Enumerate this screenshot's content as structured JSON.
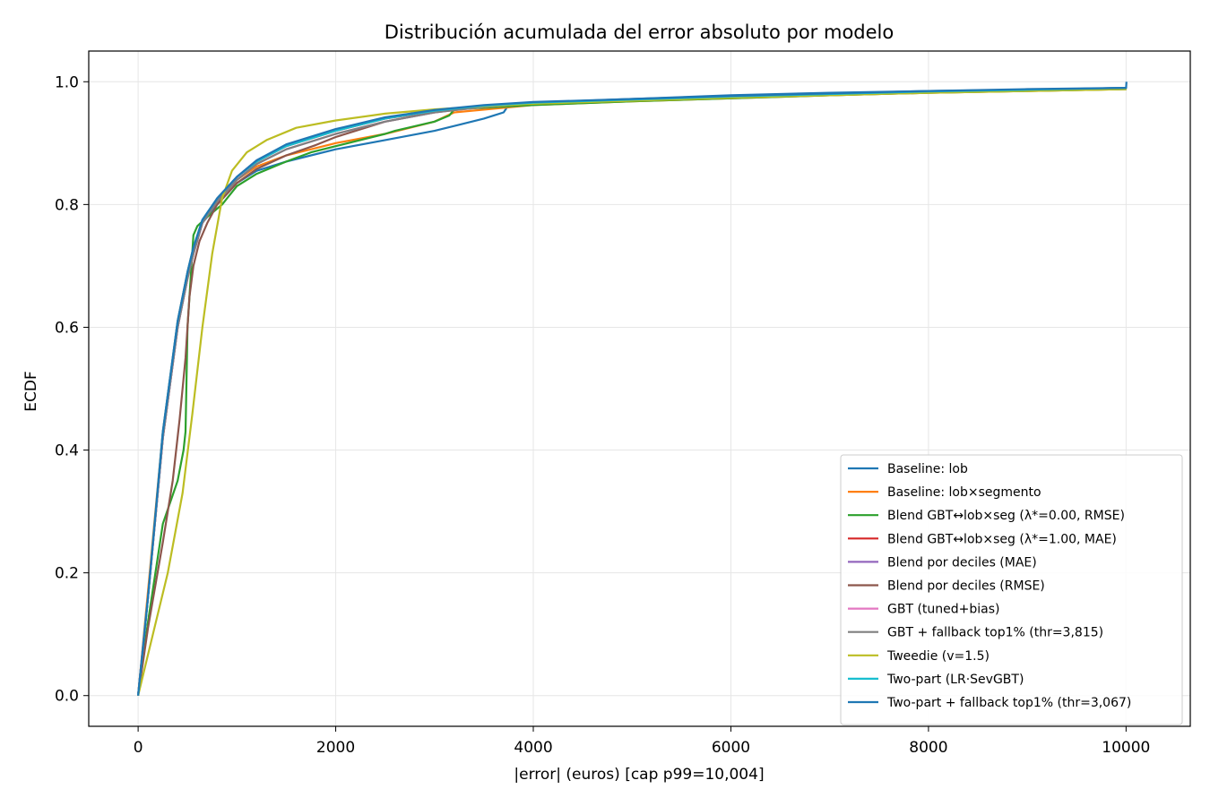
{
  "chart_data": {
    "type": "line",
    "title": "Distribución acumulada del error absoluto por modelo",
    "xlabel": "|error| (euros)  [cap p99=10,004]",
    "ylabel": "ECDF",
    "xlim": [
      -500,
      10650
    ],
    "ylim": [
      -0.05,
      1.05
    ],
    "xticks": [
      0,
      2000,
      4000,
      6000,
      8000,
      10000
    ],
    "yticks": [
      0.0,
      0.2,
      0.4,
      0.6,
      0.8,
      1.0
    ],
    "xtick_labels": [
      "0",
      "2000",
      "4000",
      "6000",
      "8000",
      "10000"
    ],
    "ytick_labels": [
      "0.0",
      "0.2",
      "0.4",
      "0.6",
      "0.8",
      "1.0"
    ],
    "grid": true,
    "legend_position": "lower-right",
    "series": [
      {
        "name": "Baseline: lob",
        "color": "#1f77b4",
        "x": [
          0,
          100,
          250,
          400,
          500,
          560,
          650,
          800,
          1000,
          1200,
          1500,
          1750,
          2000,
          2500,
          3000,
          3500,
          3700,
          3750,
          4000,
          5000,
          6000,
          7000,
          8000,
          9000,
          10000,
          10004
        ],
        "y": [
          0,
          0.16,
          0.42,
          0.6,
          0.68,
          0.72,
          0.77,
          0.8,
          0.835,
          0.855,
          0.87,
          0.88,
          0.89,
          0.905,
          0.92,
          0.94,
          0.95,
          0.962,
          0.966,
          0.972,
          0.978,
          0.982,
          0.985,
          0.987,
          0.99,
          1.0
        ]
      },
      {
        "name": "Baseline: lob×segmento",
        "color": "#ff7f0e",
        "x": [
          0,
          100,
          250,
          400,
          500,
          560,
          650,
          800,
          1000,
          1200,
          1500,
          1750,
          2000,
          2500,
          3000,
          3200,
          4000,
          5000,
          6000,
          7000,
          8000,
          9000,
          10004
        ],
        "y": [
          0,
          0.17,
          0.43,
          0.61,
          0.69,
          0.73,
          0.77,
          0.805,
          0.84,
          0.862,
          0.88,
          0.89,
          0.9,
          0.915,
          0.935,
          0.95,
          0.962,
          0.968,
          0.973,
          0.978,
          0.982,
          0.985,
          0.988
        ]
      },
      {
        "name": "Blend GBT↔lob×seg (λ*=0.00, RMSE)",
        "color": "#2ca02c",
        "x": [
          0,
          100,
          250,
          400,
          460,
          480,
          500,
          560,
          600,
          700,
          850,
          1000,
          1200,
          1500,
          1750,
          2000,
          2500,
          2600,
          3000,
          3150,
          3200,
          4000,
          5000,
          6000,
          7000,
          8000,
          9000,
          10004
        ],
        "y": [
          0,
          0.12,
          0.28,
          0.35,
          0.4,
          0.43,
          0.6,
          0.75,
          0.765,
          0.78,
          0.8,
          0.83,
          0.85,
          0.87,
          0.885,
          0.895,
          0.915,
          0.92,
          0.935,
          0.945,
          0.955,
          0.962,
          0.968,
          0.973,
          0.978,
          0.982,
          0.985,
          0.988
        ]
      },
      {
        "name": "Blend GBT↔lob×seg (λ*=1.00, MAE)",
        "color": "#d62728",
        "x": [
          0,
          100,
          250,
          400,
          500,
          560,
          650,
          800,
          1000,
          1200,
          1500,
          2000,
          2500,
          3000,
          3500,
          4000,
          5000,
          6000,
          7000,
          8000,
          9000,
          10004
        ],
        "y": [
          0,
          0.16,
          0.42,
          0.6,
          0.68,
          0.72,
          0.77,
          0.81,
          0.845,
          0.87,
          0.895,
          0.92,
          0.94,
          0.952,
          0.96,
          0.965,
          0.97,
          0.975,
          0.979,
          0.983,
          0.986,
          0.989
        ]
      },
      {
        "name": "Blend por deciles (MAE)",
        "color": "#9467bd",
        "x": [
          0,
          100,
          250,
          400,
          500,
          560,
          650,
          800,
          1000,
          1200,
          1500,
          2000,
          2500,
          3000,
          3500,
          4000,
          5000,
          6000,
          7000,
          8000,
          9000,
          10004
        ],
        "y": [
          0,
          0.16,
          0.42,
          0.6,
          0.68,
          0.72,
          0.77,
          0.81,
          0.845,
          0.872,
          0.897,
          0.922,
          0.941,
          0.953,
          0.961,
          0.966,
          0.971,
          0.976,
          0.98,
          0.984,
          0.987,
          0.99
        ]
      },
      {
        "name": "Blend por deciles (RMSE)",
        "color": "#8c564b",
        "x": [
          0,
          100,
          250,
          350,
          420,
          480,
          520,
          560,
          620,
          700,
          800,
          1000,
          1200,
          1500,
          1800,
          2000,
          2500,
          3000,
          3500,
          4000,
          5000,
          6000,
          7000,
          8000,
          9000,
          10004
        ],
        "y": [
          0,
          0.11,
          0.25,
          0.35,
          0.45,
          0.55,
          0.65,
          0.7,
          0.74,
          0.77,
          0.8,
          0.835,
          0.858,
          0.88,
          0.897,
          0.91,
          0.935,
          0.95,
          0.96,
          0.965,
          0.97,
          0.975,
          0.979,
          0.983,
          0.986,
          0.989
        ]
      },
      {
        "name": "GBT (tuned+bias)",
        "color": "#e377c2",
        "x": [
          0,
          100,
          250,
          400,
          500,
          560,
          650,
          800,
          1000,
          1200,
          1500,
          2000,
          2500,
          3000,
          3500,
          4000,
          5000,
          6000,
          7000,
          8000,
          9000,
          10004
        ],
        "y": [
          0,
          0.16,
          0.42,
          0.6,
          0.68,
          0.72,
          0.77,
          0.805,
          0.84,
          0.866,
          0.89,
          0.915,
          0.935,
          0.95,
          0.959,
          0.965,
          0.97,
          0.975,
          0.979,
          0.983,
          0.986,
          0.989
        ]
      },
      {
        "name": "GBT + fallback top1% (thr=3,815)",
        "color": "#7f7f7f",
        "x": [
          0,
          100,
          250,
          400,
          500,
          560,
          650,
          800,
          1000,
          1200,
          1500,
          2000,
          2500,
          3000,
          3500,
          4000,
          5000,
          6000,
          7000,
          8000,
          9000,
          10004
        ],
        "y": [
          0,
          0.16,
          0.42,
          0.6,
          0.68,
          0.72,
          0.77,
          0.805,
          0.84,
          0.866,
          0.89,
          0.915,
          0.935,
          0.95,
          0.959,
          0.965,
          0.97,
          0.975,
          0.979,
          0.983,
          0.986,
          0.989
        ]
      },
      {
        "name": "Tweedie (v=1.5)",
        "color": "#bcbd22",
        "x": [
          0,
          150,
          300,
          450,
          550,
          650,
          750,
          850,
          950,
          1100,
          1300,
          1600,
          2000,
          2500,
          3000,
          3500,
          4000,
          5000,
          6000,
          7000,
          8000,
          9000,
          10004
        ],
        "y": [
          0,
          0.1,
          0.2,
          0.33,
          0.46,
          0.6,
          0.72,
          0.81,
          0.855,
          0.885,
          0.905,
          0.925,
          0.937,
          0.948,
          0.955,
          0.96,
          0.964,
          0.969,
          0.974,
          0.978,
          0.982,
          0.985,
          0.988
        ]
      },
      {
        "name": "Two-part (LR·SevGBT)",
        "color": "#17becf",
        "x": [
          0,
          100,
          250,
          400,
          500,
          560,
          650,
          800,
          1000,
          1200,
          1500,
          2000,
          2500,
          3000,
          3500,
          4000,
          5000,
          6000,
          7000,
          8000,
          9000,
          10004
        ],
        "y": [
          0,
          0.16,
          0.43,
          0.61,
          0.69,
          0.73,
          0.775,
          0.81,
          0.845,
          0.87,
          0.895,
          0.92,
          0.94,
          0.953,
          0.961,
          0.966,
          0.971,
          0.976,
          0.98,
          0.984,
          0.987,
          0.99
        ]
      },
      {
        "name": "Two-part + fallback top1% (thr=3,067)",
        "color": "#1f77b4",
        "x": [
          0,
          100,
          250,
          400,
          500,
          560,
          650,
          800,
          1000,
          1200,
          1500,
          2000,
          2500,
          3000,
          3500,
          4000,
          5000,
          6000,
          7000,
          8000,
          9000,
          10000,
          10004
        ],
        "y": [
          0,
          0.16,
          0.43,
          0.61,
          0.69,
          0.73,
          0.775,
          0.81,
          0.845,
          0.872,
          0.898,
          0.923,
          0.942,
          0.954,
          0.962,
          0.967,
          0.972,
          0.977,
          0.981,
          0.985,
          0.988,
          0.99,
          0.991
        ]
      }
    ]
  }
}
